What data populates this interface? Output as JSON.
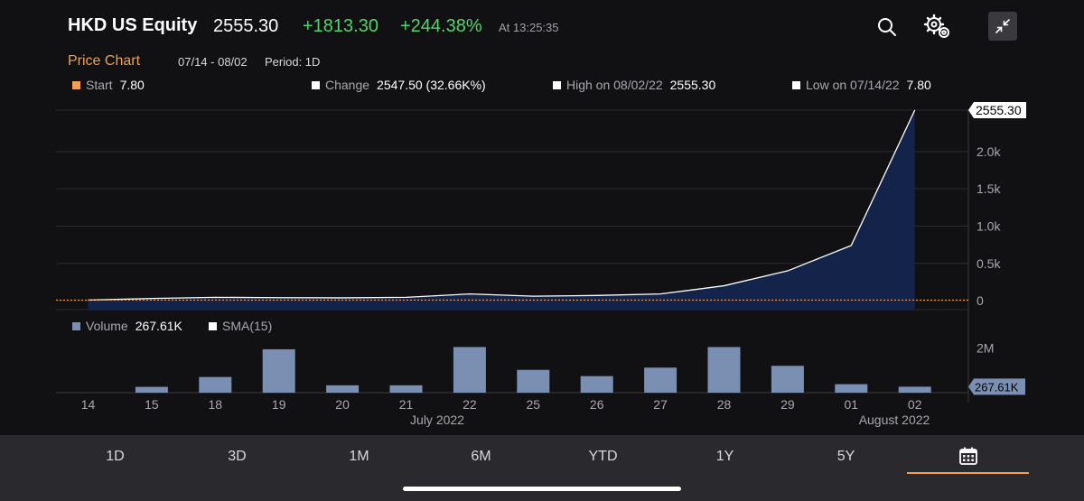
{
  "header": {
    "ticker": "HKD US Equity",
    "last_price": "2555.30",
    "change": "+1813.30",
    "change_pct": "+244.38%",
    "time": "At 13:25:35",
    "icons": [
      "search-icon",
      "gear-icon",
      "collapse-icon"
    ]
  },
  "chart_header": {
    "title": "Price Chart",
    "date_range": "07/14 - 08/02",
    "period": "Period: 1D"
  },
  "stats": {
    "start_label": "Start",
    "start_value": "7.80",
    "change_label": "Change",
    "change_value": "2547.50 (32.66K%)",
    "high_label": "High on 08/02/22",
    "high_value": "2555.30",
    "low_label": "Low on 07/14/22",
    "low_value": "7.80"
  },
  "volume_legend": {
    "volume_label": "Volume",
    "volume_value": "267.61K",
    "sma_label": "SMA(15)"
  },
  "colors": {
    "accent": "#f0a050",
    "positive": "#52d46a",
    "price_fill": "#13234a",
    "volume_bar": "#7b8fb3"
  },
  "chart_data": [
    {
      "type": "area",
      "title": "Price Chart",
      "categories": [
        "14",
        "15",
        "18",
        "19",
        "20",
        "21",
        "22",
        "25",
        "26",
        "27",
        "28",
        "29",
        "01",
        "02"
      ],
      "series": [
        {
          "values": [
            7.8,
            30,
            45,
            40,
            38,
            45,
            90,
            60,
            70,
            90,
            200,
            400,
            740,
            2555.3
          ]
        }
      ],
      "ylim": [
        -120,
        2555.3
      ],
      "yticks": [
        0,
        500,
        1000,
        1500,
        2000
      ],
      "ytick_labels": [
        "0",
        "0.5k",
        "1.0k",
        "1.5k",
        "2.0k"
      ],
      "last_label": "2555.30",
      "reference_line": 7.8,
      "x_group_labels": [
        "July 2022",
        "August 2022"
      ],
      "grid": true
    },
    {
      "type": "bar",
      "title": "Volume",
      "categories": [
        "14",
        "15",
        "18",
        "19",
        "20",
        "21",
        "22",
        "25",
        "26",
        "27",
        "28",
        "29",
        "01",
        "02"
      ],
      "series": [
        {
          "name": "Volume",
          "values": [
            0,
            260000,
            700000,
            1940000,
            330000,
            330000,
            2040000,
            1020000,
            740000,
            1120000,
            2040000,
            1200000,
            380000,
            267610
          ]
        }
      ],
      "ylim": [
        0,
        2300000
      ],
      "ytick_labels": [
        "2M"
      ],
      "last_label": "267.61K"
    }
  ],
  "tabs": [
    "1D",
    "3D",
    "1M",
    "6M",
    "YTD",
    "1Y",
    "5Y"
  ],
  "calendar_tab_icon": "calendar-icon"
}
